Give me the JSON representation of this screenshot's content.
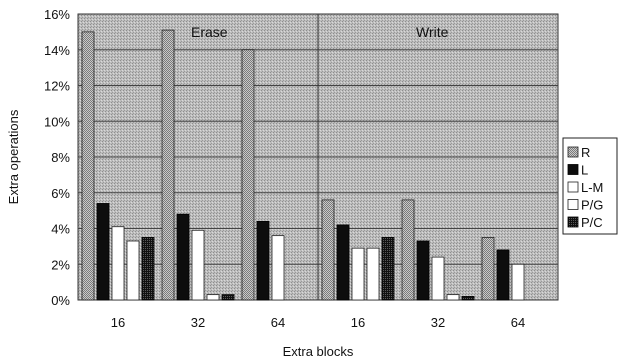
{
  "chart_data": {
    "type": "bar",
    "ylabel": "Extra operations",
    "xlabel": "Extra blocks",
    "ylim": [
      0,
      16
    ],
    "yticks": [
      "0%",
      "2%",
      "4%",
      "6%",
      "8%",
      "10%",
      "12%",
      "14%",
      "16%"
    ],
    "grid": true,
    "legend_position": "right",
    "groups": [
      {
        "name": "Erase",
        "categories": [
          "16",
          "32",
          "64"
        ]
      },
      {
        "name": "Write",
        "categories": [
          "16",
          "32",
          "64"
        ]
      }
    ],
    "categories": [
      "16",
      "32",
      "64",
      "16",
      "32",
      "64"
    ],
    "series": [
      {
        "name": "R",
        "pattern": "stipple-grey",
        "values": [
          15.0,
          15.1,
          14.0,
          5.6,
          5.6,
          3.5
        ]
      },
      {
        "name": "L",
        "pattern": "solid-black",
        "values": [
          5.4,
          4.8,
          4.4,
          4.2,
          3.3,
          2.8
        ]
      },
      {
        "name": "L-M",
        "pattern": "white",
        "values": [
          4.1,
          3.9,
          3.6,
          2.9,
          2.4,
          2.0
        ]
      },
      {
        "name": "P/G",
        "pattern": "white",
        "values": [
          3.3,
          0.3,
          0.0,
          2.9,
          0.3,
          0.0
        ]
      },
      {
        "name": "P/C",
        "pattern": "stipple-black",
        "values": [
          3.5,
          0.3,
          0.0,
          3.5,
          0.2,
          0.0
        ]
      }
    ]
  }
}
